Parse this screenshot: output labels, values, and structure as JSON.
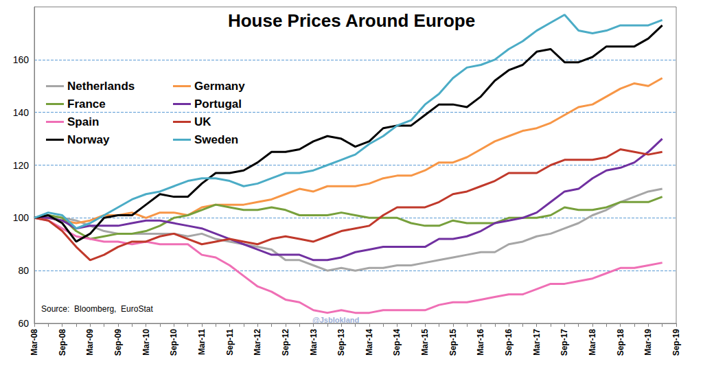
{
  "chart_data": {
    "type": "line",
    "title": "House Prices Around Europe",
    "annotations": [
      "Source:  Bloomberg,  EuroStat",
      "@Jsblokland"
    ],
    "categories": [
      "Mar-08",
      null,
      "Sep-08",
      null,
      "Mar-09",
      null,
      "Sep-09",
      null,
      "Mar-10",
      null,
      "Sep-10",
      null,
      "Mar-11",
      null,
      "Sep-11",
      null,
      "Mar-12",
      null,
      "Sep-12",
      null,
      "Mar-13",
      null,
      "Sep-13",
      null,
      "Mar-14",
      null,
      "Sep-14",
      null,
      "Mar-15",
      null,
      "Sep-15",
      null,
      "Mar-16",
      null,
      "Sep-16",
      null,
      "Mar-17",
      null,
      "Sep-17",
      null,
      "Mar-18",
      null,
      "Sep-18",
      null,
      "Mar-19",
      null,
      "Sep-19"
    ],
    "series": [
      {
        "name": "Netherlands",
        "color": "#a6a6a6",
        "values": [
          100,
          101,
          100,
          99,
          97,
          95,
          94,
          94,
          94,
          94,
          94,
          93,
          94,
          92,
          91,
          90,
          89,
          88,
          84,
          84,
          82,
          80,
          81,
          80,
          81,
          81,
          82,
          82,
          83,
          84,
          85,
          86,
          87,
          87,
          90,
          91,
          93,
          94,
          96,
          98,
          101,
          103,
          106,
          108,
          110,
          111,
          null
        ]
      },
      {
        "name": "Germany",
        "color": "#f79646",
        "values": [
          100,
          100,
          99,
          98,
          99,
          101,
          101,
          102,
          100,
          102,
          102,
          101,
          104,
          105,
          105,
          105,
          106,
          107,
          109,
          111,
          110,
          112,
          112,
          112,
          113,
          115,
          116,
          116,
          118,
          121,
          121,
          123,
          126,
          129,
          131,
          133,
          134,
          136,
          139,
          142,
          143,
          146,
          149,
          151,
          150,
          153,
          null
        ]
      },
      {
        "name": "France",
        "color": "#77a03c",
        "values": [
          100,
          101,
          100,
          95,
          92,
          93,
          94,
          94,
          95,
          97,
          100,
          101,
          103,
          105,
          104,
          103,
          103,
          104,
          103,
          101,
          101,
          101,
          102,
          101,
          100,
          100,
          100,
          98,
          97,
          97,
          99,
          98,
          98,
          98,
          100,
          100,
          100,
          101,
          104,
          103,
          103,
          104,
          106,
          106,
          106,
          108,
          null
        ]
      },
      {
        "name": "Portugal",
        "color": "#7030a0",
        "values": [
          100,
          100,
          99,
          96,
          97,
          97,
          97,
          98,
          99,
          99,
          98,
          97,
          96,
          94,
          92,
          90,
          88,
          86,
          86,
          86,
          84,
          84,
          85,
          87,
          88,
          89,
          89,
          89,
          89,
          92,
          92,
          93,
          95,
          98,
          99,
          100,
          102,
          106,
          110,
          111,
          115,
          118,
          119,
          121,
          125,
          130,
          null
        ]
      },
      {
        "name": "Spain",
        "color": "#ef6fb5",
        "values": [
          100,
          99,
          96,
          93,
          92,
          91,
          91,
          90,
          91,
          90,
          90,
          90,
          86,
          85,
          82,
          78,
          74,
          72,
          69,
          68,
          65,
          64,
          65,
          64,
          64,
          65,
          65,
          65,
          65,
          67,
          68,
          68,
          69,
          70,
          71,
          71,
          73,
          75,
          75,
          76,
          77,
          79,
          81,
          81,
          82,
          83,
          null
        ]
      },
      {
        "name": "UK",
        "color": "#c0392b",
        "values": [
          100,
          99,
          95,
          89,
          84,
          86,
          89,
          91,
          91,
          93,
          94,
          92,
          90,
          91,
          92,
          91,
          90,
          92,
          93,
          92,
          91,
          93,
          95,
          96,
          97,
          101,
          104,
          104,
          104,
          106,
          109,
          110,
          112,
          114,
          117,
          117,
          117,
          120,
          122,
          122,
          122,
          123,
          126,
          125,
          124,
          125,
          null
        ]
      },
      {
        "name": "Norway",
        "color": "#000000",
        "values": [
          100,
          101,
          98,
          91,
          94,
          100,
          101,
          101,
          105,
          109,
          108,
          108,
          113,
          117,
          117,
          118,
          121,
          125,
          125,
          126,
          129,
          131,
          130,
          127,
          129,
          134,
          135,
          135,
          139,
          143,
          143,
          142,
          146,
          152,
          156,
          158,
          163,
          164,
          159,
          159,
          161,
          165,
          165,
          165,
          168,
          173,
          null
        ]
      },
      {
        "name": "Sweden",
        "color": "#4bacc6",
        "values": [
          100,
          102,
          101,
          96,
          98,
          101,
          104,
          107,
          109,
          110,
          112,
          114,
          115,
          115,
          114,
          112,
          113,
          115,
          117,
          117,
          118,
          120,
          122,
          124,
          128,
          131,
          135,
          137,
          143,
          147,
          153,
          157,
          158,
          160,
          164,
          167,
          171,
          174,
          177,
          171,
          170,
          171,
          173,
          173,
          173,
          175,
          null
        ]
      }
    ],
    "ylim": [
      60,
      180
    ],
    "yticks": [
      60,
      80,
      100,
      120,
      140,
      160
    ],
    "grid": true,
    "legend": "upper left"
  }
}
